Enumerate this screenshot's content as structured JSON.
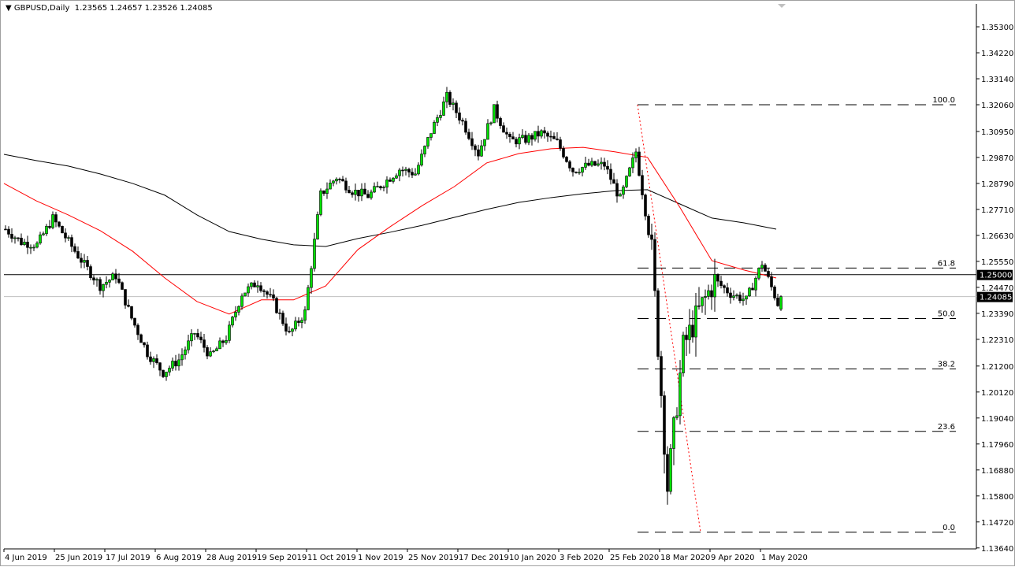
{
  "header": {
    "menu_icon": "triangle-down-icon",
    "symbol": "GBPUSD,Daily",
    "ohlc": "1.23565 1.24657 1.23526 1.24085"
  },
  "colors": {
    "bull_fill": "#00e000",
    "bear_fill": "#000000",
    "ma_fast": "#ff0000",
    "ma_slow": "#000000",
    "fib": "#000000",
    "trendline": "#ff0000",
    "current_price_line": "#c0c0c0"
  },
  "chart_data": {
    "type": "candlestick",
    "symbol": "GBPUSD",
    "timeframe": "Daily",
    "ylim": [
      1.136,
      1.3625
    ],
    "y_ticks": [
      "1.35300",
      "1.34220",
      "1.33140",
      "1.32060",
      "1.30950",
      "1.29870",
      "1.28790",
      "1.27710",
      "1.26630",
      "1.25550",
      "1.24470",
      "1.23390",
      "1.22310",
      "1.21200",
      "1.20120",
      "1.19040",
      "1.17960",
      "1.16880",
      "1.15800",
      "1.14720",
      "1.13640"
    ],
    "x_ticks": [
      "4 Jun 2019",
      "25 Jun 2019",
      "17 Jul 2019",
      "6 Aug 2019",
      "28 Aug 2019",
      "19 Sep 2019",
      "11 Oct 2019",
      "1 Nov 2019",
      "25 Nov 2019",
      "17 Dec 2019",
      "10 Jan 2020",
      "3 Feb 2020",
      "25 Feb 2020",
      "18 Mar 2020",
      "9 Apr 2020",
      "1 May 2020"
    ],
    "weekly_close_approx": [
      1.2689,
      1.2635,
      1.2624,
      1.2734,
      1.2636,
      1.2541,
      1.2453,
      1.2496,
      1.2319,
      1.2174,
      1.2092,
      1.2146,
      1.2258,
      1.216,
      1.2237,
      1.2421,
      1.2469,
      1.2384,
      1.2252,
      1.2344,
      1.2833,
      1.2905,
      1.2849,
      1.2827,
      1.2881,
      1.2938,
      1.292,
      1.3095,
      1.3239,
      1.3134,
      1.3003,
      1.3187,
      1.3055,
      1.3062,
      1.3088,
      1.3049,
      1.2933,
      1.2954,
      1.2956,
      1.2814,
      1.3011,
      1.2598,
      1.1616,
      1.2198,
      1.2349,
      1.2476,
      1.2421,
      1.2394,
      1.2548,
      1.238
    ],
    "last_close": 1.24085,
    "ma_red_approx": [
      1.2879,
      1.2807,
      1.2748,
      1.2682,
      1.2597,
      1.2486,
      1.2388,
      1.2336,
      1.2395,
      1.2395,
      1.2453,
      1.2604,
      1.2699,
      1.2787,
      1.2866,
      1.2964,
      1.3003,
      1.3023,
      1.3029,
      1.301,
      1.2987,
      1.2781,
      1.2558,
      1.2519,
      1.2486
    ],
    "ma_black_approx": [
      1.3,
      1.2974,
      1.2951,
      1.2918,
      1.2879,
      1.283,
      1.2748,
      1.2679,
      1.2647,
      1.2624,
      1.2617,
      1.265,
      1.2676,
      1.2705,
      1.2738,
      1.2771,
      1.28,
      1.282,
      1.2836,
      1.2849,
      1.2853,
      1.2794,
      1.2735,
      1.2715,
      1.2689
    ],
    "horizontal_line": {
      "price": 1.25,
      "label": "1.25000"
    },
    "current_price": {
      "price": 1.24085,
      "label": "1.24085"
    },
    "fibonacci": {
      "high": 1.3206,
      "low": 1.1429,
      "levels": [
        {
          "ratio": 1.0,
          "label": "100.0"
        },
        {
          "ratio": 0.618,
          "label": "61.8"
        },
        {
          "ratio": 0.5,
          "label": "50.0"
        },
        {
          "ratio": 0.382,
          "label": "38.2"
        },
        {
          "ratio": 0.236,
          "label": "23.6"
        },
        {
          "ratio": 0.0,
          "label": "0.0"
        }
      ]
    },
    "trendline": {
      "from_price": 1.3206,
      "to_price": 1.1429,
      "style": "dotted"
    }
  }
}
